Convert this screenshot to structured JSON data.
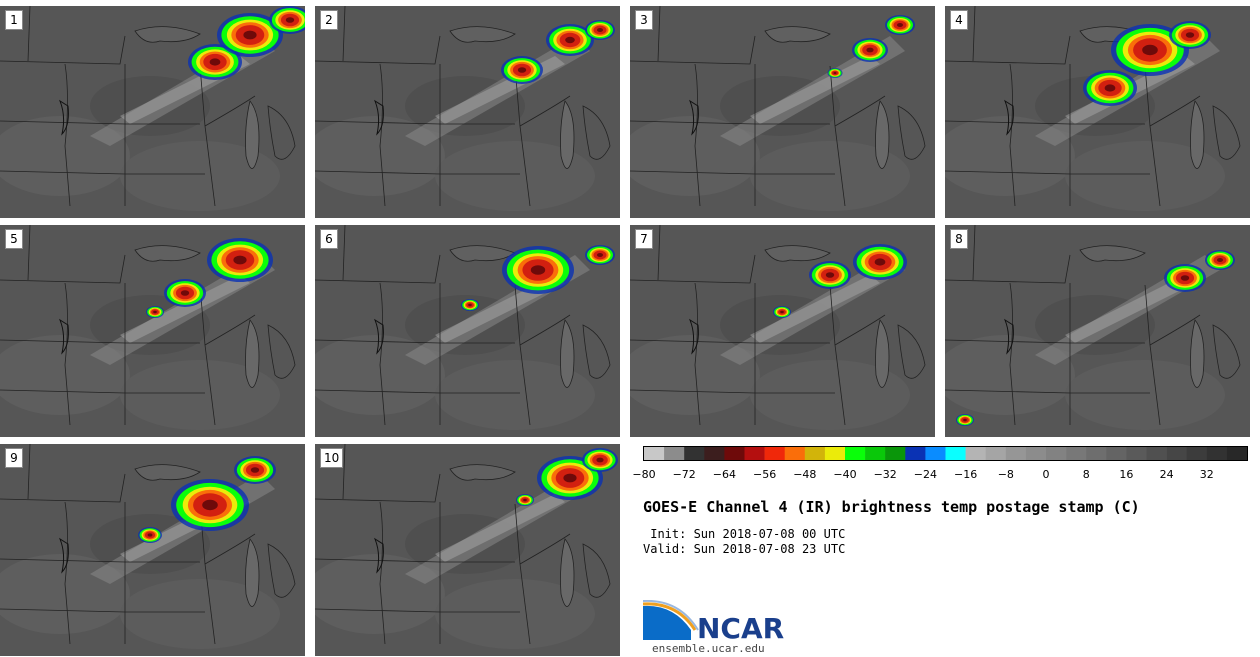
{
  "panels": [
    {
      "label": "1"
    },
    {
      "label": "2"
    },
    {
      "label": "3"
    },
    {
      "label": "4"
    },
    {
      "label": "5"
    },
    {
      "label": "6"
    },
    {
      "label": "7"
    },
    {
      "label": "8"
    },
    {
      "label": "9"
    },
    {
      "label": "10"
    }
  ],
  "colorbar": {
    "colors": [
      "#c8c8c8",
      "#8c8c8c",
      "#323232",
      "#3c1e1e",
      "#6e0a0a",
      "#b40f0f",
      "#f0280a",
      "#fa6e0a",
      "#d2b40a",
      "#ebeb0a",
      "#0aff0a",
      "#0ac80a",
      "#0a960a",
      "#0a32b4",
      "#0a8cff",
      "#0affff",
      "#b4b4b4",
      "#a5a5a5",
      "#969696",
      "#8c8c8c",
      "#828282",
      "#787878",
      "#6e6e6e",
      "#646464",
      "#5a5a5a",
      "#505050",
      "#464646",
      "#3c3c3c",
      "#323232",
      "#282828"
    ],
    "ticks": [
      "−80",
      "−72",
      "−64",
      "−56",
      "−48",
      "−40",
      "−32",
      "−24",
      "−16",
      "−8",
      "0",
      "8",
      "16",
      "24",
      "32"
    ]
  },
  "title": "GOES-E Channel 4 (IR) brightness temp postage stamp (C)",
  "init": " Init: Sun 2018-07-08 00 UTC",
  "valid": "Valid: Sun 2018-07-08 23 UTC",
  "logo": {
    "name": "NCAR",
    "url": "ensemble.ucar.edu"
  }
}
